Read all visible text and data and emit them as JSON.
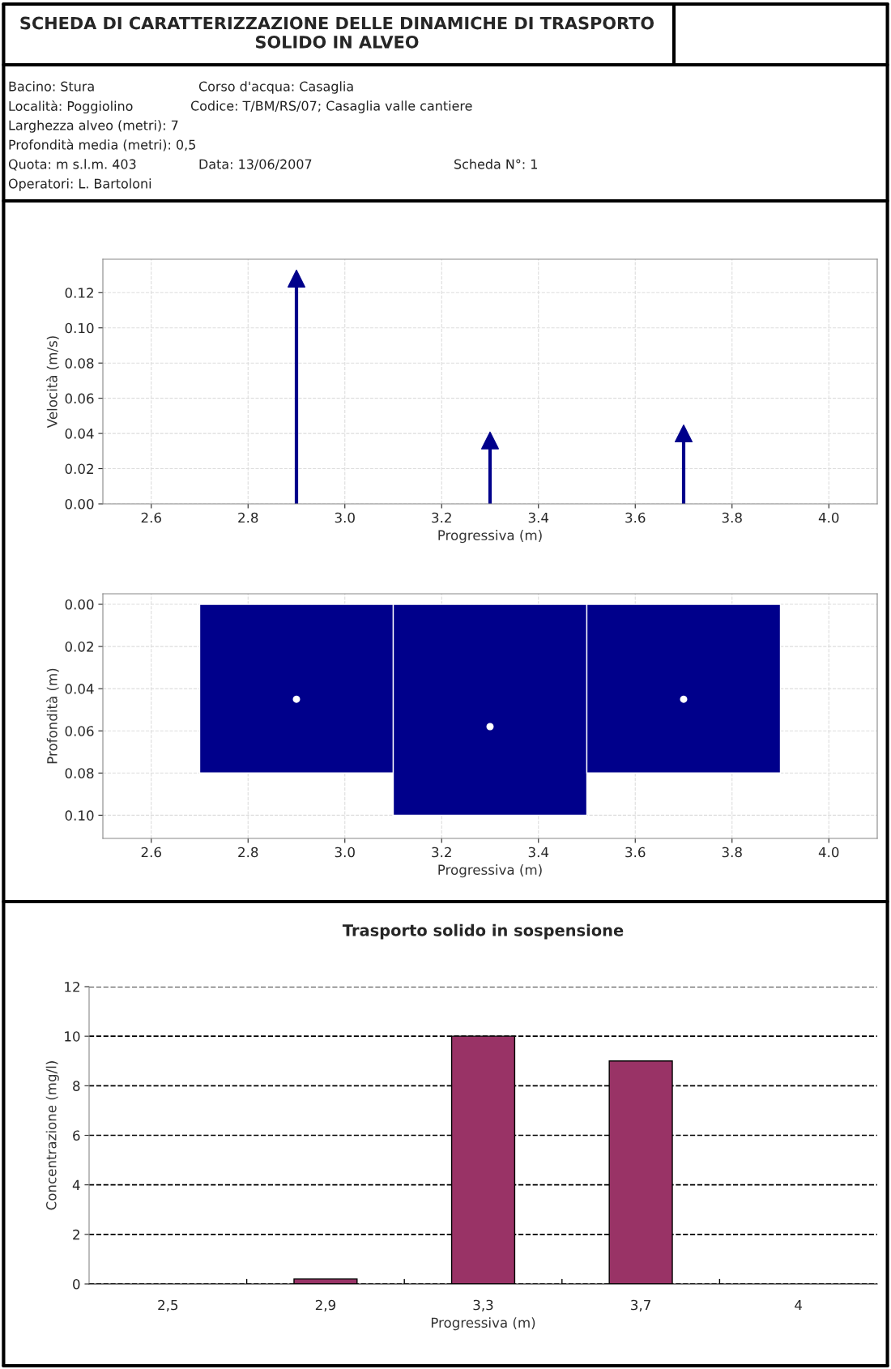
{
  "chart_data": [
    {
      "type": "other",
      "title": "SCHEDA DI CARATTERIZZAZIONE DELLE DINAMICHE DI TRASPORTO SOLIDO IN ALVEO",
      "annotations": [
        "Bacino: Stura",
        "Corso d'acqua: Casaglia",
        "Località: Poggiolino",
        "Codice: T/BM/RS/07; Casaglia valle cantiere",
        "Larghezza alveo (metri): 7",
        "Profondità media (metri): 0,5",
        "Quota: m s.l.m. 403",
        "Data: 13/06/2007",
        "Scheda N°: 1",
        "Operatori: L. Bartoloni"
      ]
    },
    {
      "type": "lollipop",
      "x": [
        2.9,
        3.3,
        3.7
      ],
      "values": [
        0.128,
        0.036,
        0.04
      ],
      "color": "#00008b",
      "marker": "triangle",
      "xlabel": "Progressiva (m)",
      "ylabel": "Velocità (m/s)",
      "xlim": [
        2.5,
        4.1
      ],
      "ylim": [
        0,
        0.139
      ],
      "xticks": [
        {
          "value": 2.6,
          "label": "2.6"
        },
        {
          "value": 2.8,
          "label": "2.8"
        },
        {
          "value": 3.0,
          "label": "3.0"
        },
        {
          "value": 3.2,
          "label": "3.2"
        },
        {
          "value": 3.4,
          "label": "3.4"
        },
        {
          "value": 3.6,
          "label": "3.6"
        },
        {
          "value": 3.8,
          "label": "3.8"
        },
        {
          "value": 4.0,
          "label": "4.0"
        }
      ],
      "yticks": [
        {
          "value": 0,
          "label": "0.00"
        },
        {
          "value": 0.02,
          "label": "0.02"
        },
        {
          "value": 0.04,
          "label": "0.04"
        },
        {
          "value": 0.06,
          "label": "0.06"
        },
        {
          "value": 0.08,
          "label": "0.08"
        },
        {
          "value": 0.1,
          "label": "0.10"
        },
        {
          "value": 0.12,
          "label": "0.12"
        }
      ],
      "grid": true
    },
    {
      "type": "bar",
      "x": [
        2.9,
        3.3,
        3.7
      ],
      "series": [
        {
          "type": "bar",
          "color": "#00008b",
          "values": [
            0.08,
            0.1,
            0.08
          ]
        },
        {
          "type": "scatter",
          "color": "#ffffff",
          "x": [
            2.9,
            3.3,
            3.7
          ],
          "values": [
            0.045,
            0.058,
            0.045
          ]
        }
      ],
      "marker": "circle",
      "xlabel": "Progressiva (m)",
      "ylabel": "Profondità (m)",
      "xlim": [
        2.5,
        4.1
      ],
      "ylim": [
        0.111,
        -0.005
      ],
      "xticks": [
        {
          "value": 2.6,
          "label": "2.6"
        },
        {
          "value": 2.8,
          "label": "2.8"
        },
        {
          "value": 3.0,
          "label": "3.0"
        },
        {
          "value": 3.2,
          "label": "3.2"
        },
        {
          "value": 3.4,
          "label": "3.4"
        },
        {
          "value": 3.6,
          "label": "3.6"
        },
        {
          "value": 3.8,
          "label": "3.8"
        },
        {
          "value": 4.0,
          "label": "4.0"
        }
      ],
      "yticks": [
        {
          "value": 0,
          "label": "0.00"
        },
        {
          "value": 0.02,
          "label": "0.02"
        },
        {
          "value": 0.04,
          "label": "0.04"
        },
        {
          "value": 0.06,
          "label": "0.06"
        },
        {
          "value": 0.08,
          "label": "0.08"
        },
        {
          "value": 0.1,
          "label": "0.10"
        }
      ],
      "grid": true
    },
    {
      "type": "bar",
      "title": "Trasporto solido in sospensione",
      "categories": [
        "2,5",
        "2,9",
        "3,3",
        "3,7",
        "4"
      ],
      "values": [
        0,
        0.2,
        10,
        9,
        0
      ],
      "color": "#993366",
      "xlabel": "Progressiva (m)",
      "ylabel": "Concentrazione (mg/l)",
      "ylim": [
        0,
        12
      ],
      "yticks": [
        0,
        2,
        4,
        6,
        8,
        10,
        12
      ],
      "grid": "y",
      "line_style": "dashed"
    }
  ]
}
